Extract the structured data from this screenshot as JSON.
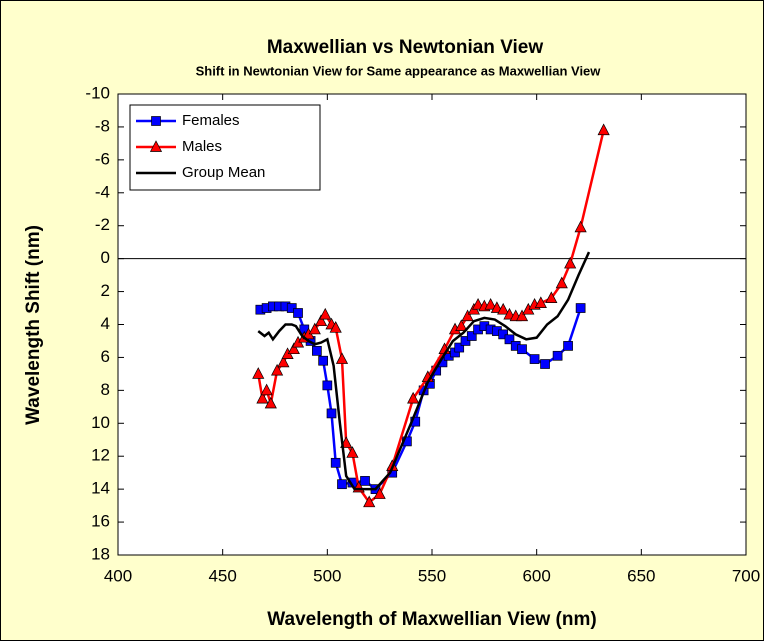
{
  "chart_data": {
    "type": "line",
    "title": "Maxwellian vs Newtonian View",
    "subtitle": "Shift in Newtonian View for Same appearance as Maxwellian View",
    "x_label": "Wavelength of Maxwellian View (nm)",
    "y_label": "Wavelength Shift (nm)",
    "xlim": [
      400,
      700
    ],
    "xticks": [
      400,
      450,
      500,
      550,
      600,
      650,
      700
    ],
    "ylim": [
      -10,
      18
    ],
    "yticks": [
      -10,
      -8,
      -6,
      -4,
      -2,
      0,
      2,
      4,
      6,
      8,
      10,
      12,
      14,
      16,
      18
    ],
    "y_reversed": true,
    "reference_line": 0,
    "legend": "upper left",
    "series": [
      {
        "name": "Females",
        "color": "#0000ff",
        "marker": "square",
        "x": [
          468,
          471,
          474,
          477,
          480,
          483,
          486,
          489,
          492,
          495,
          498,
          500,
          502,
          504,
          507,
          512,
          518,
          523,
          531,
          538,
          542,
          546,
          549,
          552,
          555,
          558,
          561,
          563,
          566,
          569,
          572,
          575,
          578,
          581,
          584,
          587,
          590,
          593,
          599,
          604,
          610,
          615,
          621
        ],
        "values": [
          3.1,
          3.0,
          2.9,
          2.9,
          2.9,
          3.0,
          3.3,
          4.3,
          5.0,
          5.6,
          6.2,
          7.7,
          9.4,
          12.4,
          13.7,
          13.6,
          13.5,
          14.0,
          13.0,
          11.1,
          9.9,
          8.0,
          7.6,
          6.8,
          6.3,
          5.9,
          5.7,
          5.4,
          5.0,
          4.7,
          4.3,
          4.1,
          4.3,
          4.4,
          4.6,
          4.9,
          5.3,
          5.5,
          6.1,
          6.4,
          5.9,
          5.3,
          3.0
        ]
      },
      {
        "name": "Males",
        "color": "#ff0000",
        "marker": "triangle",
        "x": [
          467,
          469,
          471,
          473,
          476,
          479,
          481,
          484,
          486,
          489,
          491,
          494,
          497,
          499,
          502,
          504,
          507,
          509,
          512,
          515,
          520,
          525,
          531,
          541,
          548,
          556,
          561,
          564,
          567,
          570,
          572,
          575,
          578,
          581,
          584,
          587,
          590,
          593,
          596,
          599,
          602,
          607,
          612,
          616,
          621,
          632
        ],
        "values": [
          7.0,
          8.5,
          8.0,
          8.8,
          6.8,
          6.3,
          5.8,
          5.5,
          5.1,
          4.8,
          4.6,
          4.3,
          3.8,
          3.4,
          4.0,
          4.2,
          6.1,
          11.2,
          11.8,
          13.9,
          14.8,
          14.3,
          12.6,
          8.5,
          7.2,
          5.5,
          4.3,
          4.1,
          3.5,
          3.1,
          2.8,
          2.9,
          2.8,
          3.0,
          3.1,
          3.4,
          3.5,
          3.5,
          3.1,
          2.8,
          2.7,
          2.4,
          1.5,
          0.3,
          -1.9,
          -7.8
        ]
      },
      {
        "name": "Group Mean",
        "color": "#000000",
        "marker": "none",
        "x": [
          467,
          470,
          472,
          474,
          477,
          480,
          483,
          485,
          488,
          491,
          494,
          497,
          500,
          503,
          506,
          509,
          513,
          518,
          523,
          530,
          540,
          548,
          555,
          560,
          565,
          570,
          575,
          580,
          585,
          590,
          595,
          600,
          605,
          610,
          615,
          620,
          625
        ],
        "values": [
          4.4,
          4.7,
          4.5,
          4.9,
          4.4,
          4.0,
          4.0,
          4.1,
          4.7,
          5.0,
          5.2,
          5.1,
          4.9,
          6.5,
          10.0,
          13.2,
          14.0,
          14.0,
          14.0,
          13.0,
          10.0,
          7.5,
          6.0,
          5.0,
          4.5,
          3.8,
          3.6,
          3.7,
          4.1,
          4.6,
          4.9,
          4.8,
          4.0,
          3.5,
          2.5,
          1.0,
          -0.4
        ]
      }
    ]
  }
}
